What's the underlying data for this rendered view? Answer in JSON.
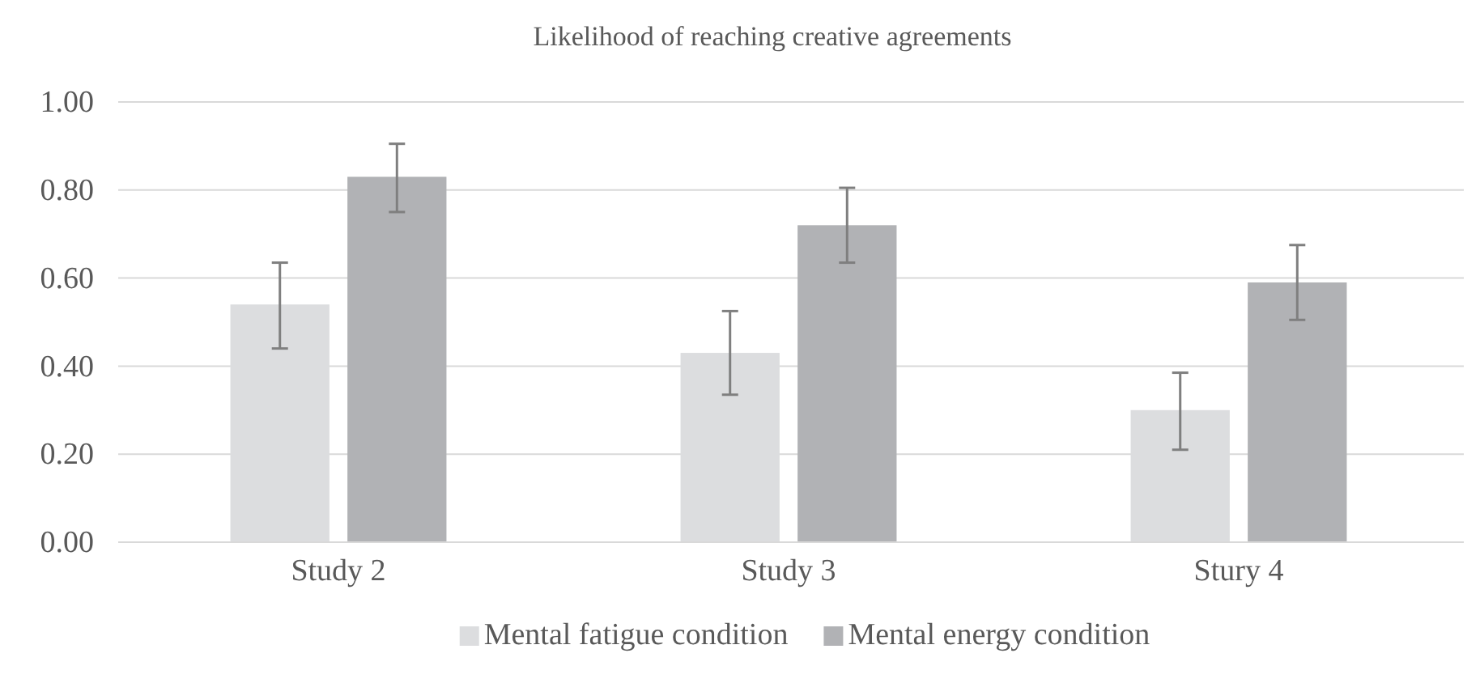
{
  "chart_data": {
    "type": "bar",
    "title": "Likelihood of reaching creative agreements",
    "categories": [
      "Study 2",
      "Study 3",
      "Stury 4"
    ],
    "series": [
      {
        "name": "Mental fatigue condition",
        "color": "#dcdddf",
        "values": [
          0.54,
          0.43,
          0.3
        ],
        "errors": [
          [
            0.44,
            0.635
          ],
          [
            0.335,
            0.525
          ],
          [
            0.21,
            0.385
          ]
        ]
      },
      {
        "name": "Mental energy condition",
        "color": "#b1b2b5",
        "values": [
          0.83,
          0.72,
          0.59
        ],
        "errors": [
          [
            0.75,
            0.905
          ],
          [
            0.635,
            0.805
          ],
          [
            0.505,
            0.675
          ]
        ]
      }
    ],
    "ylim": [
      0,
      1
    ],
    "yticks": [
      {
        "value": 0,
        "label": "0.00"
      },
      {
        "value": 0.2,
        "label": "0.20"
      },
      {
        "value": 0.4,
        "label": "0.40"
      },
      {
        "value": 0.6,
        "label": "0.60"
      },
      {
        "value": 0.8,
        "label": "0.80"
      },
      {
        "value": 1,
        "label": "1.00"
      }
    ],
    "grid": "y",
    "legend": "bottom"
  }
}
